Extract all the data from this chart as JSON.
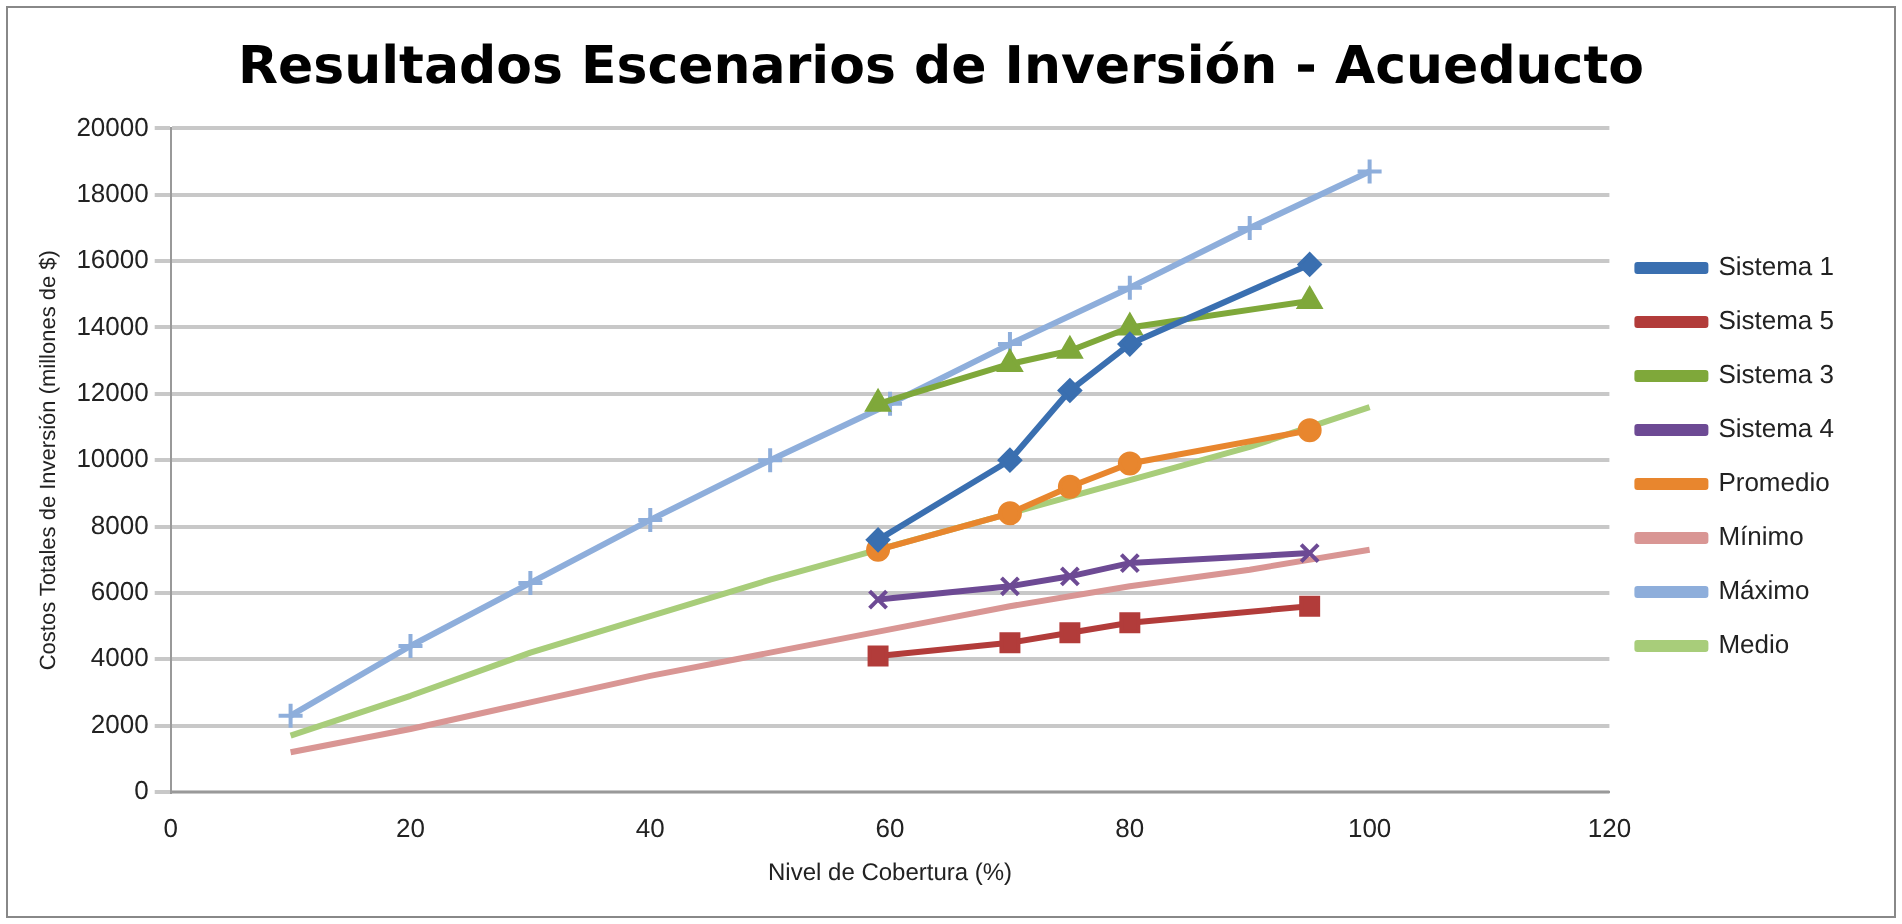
{
  "chart_data": {
    "type": "line",
    "title": "Resultados Escenarios de Inversión - Acueducto",
    "xlabel": "Nivel de Cobertura (%)",
    "ylabel": "Costos Totales de Inversión (millones de $)",
    "xlim": [
      0,
      120
    ],
    "xticks": [
      0,
      20,
      40,
      60,
      80,
      100,
      120
    ],
    "ylim": [
      0,
      20000
    ],
    "yticks": [
      0,
      2000,
      4000,
      6000,
      8000,
      10000,
      12000,
      14000,
      16000,
      18000,
      20000
    ],
    "grid": "y",
    "legend": "right",
    "series": [
      {
        "name": "Sistema 1",
        "color": "#3a6fb0",
        "marker": "diamond",
        "x": [
          59,
          70,
          75,
          80,
          95
        ],
        "values": [
          7600,
          10000,
          12100,
          13500,
          15900
        ]
      },
      {
        "name": "Sistema 5",
        "color": "#b23c3a",
        "marker": "square",
        "x": [
          59,
          70,
          75,
          80,
          95
        ],
        "values": [
          4100,
          4500,
          4800,
          5100,
          5600
        ]
      },
      {
        "name": "Sistema 3",
        "color": "#7fa83a",
        "marker": "triangle",
        "x": [
          59,
          70,
          75,
          80,
          95
        ],
        "values": [
          11700,
          12900,
          13300,
          14000,
          14800
        ]
      },
      {
        "name": "Sistema 4",
        "color": "#6d4a94",
        "marker": "cross",
        "x": [
          59,
          70,
          75,
          80,
          95
        ],
        "values": [
          5800,
          6200,
          6500,
          6900,
          7200
        ]
      },
      {
        "name": "Promedio",
        "color": "#e8862e",
        "marker": "circle",
        "x": [
          59,
          70,
          75,
          80,
          95
        ],
        "values": [
          7300,
          8400,
          9200,
          9900,
          10900
        ]
      },
      {
        "name": "Mínimo",
        "color": "#d99694",
        "marker": "none",
        "x": [
          10,
          20,
          30,
          40,
          50,
          60,
          70,
          80,
          90,
          100
        ],
        "values": [
          1200,
          1900,
          2700,
          3500,
          4200,
          4900,
          5600,
          6200,
          6700,
          7300
        ]
      },
      {
        "name": "Máximo",
        "color": "#8eaedb",
        "marker": "plus",
        "x": [
          10,
          20,
          30,
          40,
          50,
          60,
          70,
          80,
          90,
          100
        ],
        "values": [
          2300,
          4400,
          6300,
          8200,
          10000,
          11700,
          13500,
          15200,
          17000,
          18700
        ]
      },
      {
        "name": "Medio",
        "color": "#a8cd7a",
        "marker": "none",
        "x": [
          10,
          20,
          30,
          40,
          50,
          60,
          70,
          80,
          90,
          100
        ],
        "values": [
          1700,
          2900,
          4200,
          5300,
          6400,
          7400,
          8400,
          9400,
          10400,
          11600
        ]
      }
    ]
  }
}
